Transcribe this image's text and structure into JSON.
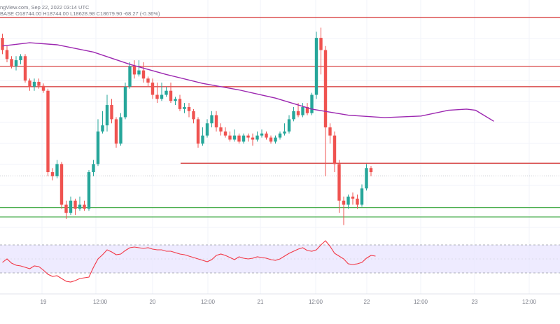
{
  "header": {
    "source": "ngView.com, Sep 22, 2022 03:14 UTC",
    "ohlc": "BASE  O18744.00  H18744.00  L18628.98  C18679.90  -68.27 (-0.36%)"
  },
  "colors": {
    "up": "#26a69a",
    "down": "#ef5350",
    "ma": "#9c27b0",
    "resistance": "#d32f2f",
    "support": "#4caf50",
    "rsi_line": "#f23645",
    "rsi_band": "#e8e4ff",
    "grid": "#f0f3fa"
  },
  "chart_data": [
    {
      "type": "candlestick",
      "title": "",
      "x_axis": {
        "tick_labels": [
          "19",
          "12:00",
          "20",
          "12:00",
          "21",
          "12:00",
          "22",
          "12:00",
          "23",
          "12:00"
        ]
      },
      "moving_average": [
        [
          0,
          18970
        ],
        [
          6,
          18978
        ],
        [
          12,
          18973
        ],
        [
          20,
          18955
        ],
        [
          28,
          18925
        ],
        [
          36,
          18900
        ],
        [
          44,
          18878
        ],
        [
          52,
          18862
        ],
        [
          60,
          18842
        ],
        [
          68,
          18815
        ],
        [
          76,
          18800
        ],
        [
          84,
          18794
        ],
        [
          92,
          18798
        ],
        [
          98,
          18812
        ],
        [
          102,
          18815
        ],
        [
          104,
          18812
        ],
        [
          108,
          18785
        ]
      ],
      "candles": [
        [
          18990,
          18960,
          19000,
          18950
        ],
        [
          18960,
          18938,
          18970,
          18930
        ],
        [
          18938,
          18920,
          18945,
          18915
        ],
        [
          18920,
          18935,
          18945,
          18910
        ],
        [
          18935,
          18945,
          18950,
          18925
        ],
        [
          18945,
          18885,
          18950,
          18880
        ],
        [
          18885,
          18870,
          18890,
          18860
        ],
        [
          18870,
          18882,
          18890,
          18860
        ],
        [
          18882,
          18872,
          18890,
          18865
        ],
        [
          18872,
          18860,
          18878,
          18855
        ],
        [
          18860,
          18660,
          18865,
          18650
        ],
        [
          18660,
          18650,
          18670,
          18640
        ],
        [
          18650,
          18680,
          18690,
          18645
        ],
        [
          18680,
          18580,
          18685,
          18570
        ],
        [
          18580,
          18560,
          18590,
          18545
        ],
        [
          18560,
          18590,
          18600,
          18555
        ],
        [
          18590,
          18570,
          18595,
          18555
        ],
        [
          18570,
          18580,
          18600,
          18565
        ],
        [
          18580,
          18570,
          18590,
          18565
        ],
        [
          18570,
          18660,
          18665,
          18565
        ],
        [
          18660,
          18680,
          18690,
          18650
        ],
        [
          18680,
          18760,
          18790,
          18675
        ],
        [
          18760,
          18775,
          18810,
          18755
        ],
        [
          18775,
          18825,
          18850,
          18760
        ],
        [
          18825,
          18790,
          18840,
          18780
        ],
        [
          18790,
          18730,
          18795,
          18720
        ],
        [
          18730,
          18795,
          18805,
          18725
        ],
        [
          18795,
          18870,
          18880,
          18790
        ],
        [
          18870,
          18920,
          18930,
          18865
        ],
        [
          18920,
          18900,
          18935,
          18890
        ],
        [
          18900,
          18910,
          18935,
          18895
        ],
        [
          18910,
          18890,
          18930,
          18880
        ],
        [
          18890,
          18880,
          18895,
          18870
        ],
        [
          18880,
          18850,
          18890,
          18840
        ],
        [
          18850,
          18840,
          18880,
          18830
        ],
        [
          18840,
          18850,
          18880,
          18835
        ],
        [
          18850,
          18860,
          18870,
          18845
        ],
        [
          18860,
          18835,
          18880,
          18830
        ],
        [
          18835,
          18840,
          18845,
          18825
        ],
        [
          18840,
          18815,
          18850,
          18810
        ],
        [
          18815,
          18820,
          18830,
          18805
        ],
        [
          18820,
          18810,
          18830,
          18795
        ],
        [
          18810,
          18790,
          18815,
          18780
        ],
        [
          18790,
          18730,
          18795,
          18720
        ],
        [
          18730,
          18750,
          18770,
          18725
        ],
        [
          18750,
          18780,
          18790,
          18745
        ],
        [
          18780,
          18800,
          18810,
          18770
        ],
        [
          18800,
          18770,
          18810,
          18760
        ],
        [
          18770,
          18760,
          18780,
          18750
        ],
        [
          18760,
          18750,
          18770,
          18745
        ],
        [
          18750,
          18740,
          18760,
          18735
        ],
        [
          18740,
          18750,
          18765,
          18735
        ],
        [
          18750,
          18735,
          18755,
          18730
        ],
        [
          18735,
          18750,
          18755,
          18730
        ],
        [
          18750,
          18745,
          18755,
          18735
        ],
        [
          18745,
          18740,
          18755,
          18725
        ],
        [
          18740,
          18750,
          18760,
          18735
        ],
        [
          18750,
          18755,
          18765,
          18745
        ],
        [
          18755,
          18745,
          18760,
          18740
        ],
        [
          18745,
          18735,
          18750,
          18730
        ],
        [
          18735,
          18745,
          18750,
          18730
        ],
        [
          18745,
          18755,
          18760,
          18740
        ],
        [
          18755,
          18760,
          18780,
          18750
        ],
        [
          18760,
          18790,
          18800,
          18755
        ],
        [
          18790,
          18810,
          18820,
          18785
        ],
        [
          18810,
          18800,
          18830,
          18795
        ],
        [
          18800,
          18820,
          18830,
          18795
        ],
        [
          18820,
          18805,
          18830,
          18800
        ],
        [
          18805,
          18850,
          18855,
          18800
        ],
        [
          18850,
          18990,
          19005,
          18840
        ],
        [
          18990,
          18960,
          19015,
          18900
        ],
        [
          18960,
          18770,
          18970,
          18650
        ],
        [
          18770,
          18750,
          18780,
          18730
        ],
        [
          18750,
          18680,
          18760,
          18660
        ],
        [
          18680,
          18590,
          18690,
          18560
        ],
        [
          18590,
          18580,
          18600,
          18530
        ],
        [
          18580,
          18600,
          18605,
          18570
        ],
        [
          18600,
          18595,
          18610,
          18580
        ],
        [
          18595,
          18580,
          18605,
          18570
        ],
        [
          18580,
          18620,
          18630,
          18575
        ],
        [
          18620,
          18670,
          18680,
          18615
        ],
        [
          18670,
          18660,
          18675,
          18650
        ]
      ],
      "horizontal_levels": [
        {
          "kind": "resistance",
          "value": 19040
        },
        {
          "kind": "resistance",
          "value": 18920
        },
        {
          "kind": "resistance",
          "value": 18870
        },
        {
          "kind": "resistance",
          "value": 18682
        },
        {
          "kind": "support",
          "value": 18573
        },
        {
          "kind": "support",
          "value": 18550
        }
      ],
      "current_price": 18651,
      "grid": true,
      "legend": "none"
    },
    {
      "type": "line",
      "title": "",
      "ylim": [
        0,
        100
      ],
      "band": [
        30,
        70
      ],
      "values": [
        45,
        50,
        44,
        41,
        40,
        38,
        36,
        40,
        39,
        34,
        28,
        25,
        26,
        22,
        18,
        17,
        19,
        22,
        23,
        24,
        38,
        50,
        56,
        63,
        60,
        56,
        57,
        62,
        66,
        67,
        66,
        65,
        66,
        64,
        63,
        63,
        61,
        61,
        59,
        57,
        56,
        54,
        52,
        50,
        48,
        46,
        49,
        55,
        57,
        55,
        52,
        49,
        53,
        51,
        50,
        51,
        53,
        52,
        51,
        49,
        48,
        50,
        54,
        58,
        61,
        64,
        66,
        62,
        61,
        63,
        70,
        76,
        68,
        58,
        54,
        50,
        43,
        42,
        43,
        45,
        51,
        55,
        54
      ]
    }
  ]
}
